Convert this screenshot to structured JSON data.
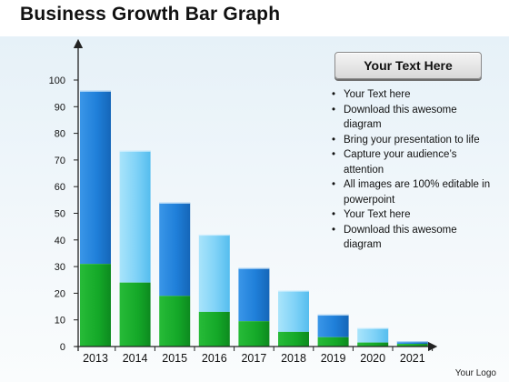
{
  "title": "Business Growth Bar Graph",
  "callout": {
    "label": "Your Text Here"
  },
  "bullets": [
    "Your Text here",
    "Download this awesome diagram",
    "Bring your presentation to life",
    "Capture your audience’s attention",
    "All images are 100% editable in powerpoint",
    "Your Text here",
    "Download this awesome diagram"
  ],
  "logo": "Your Logo",
  "colors": {
    "blue_dark": "#1c7bd6",
    "blue_light": "#7fd2f7",
    "green": "#14a828",
    "axis": "#222222"
  },
  "chart_data": {
    "type": "bar",
    "stacked": true,
    "categories": [
      "2013",
      "2014",
      "2015",
      "2016",
      "2017",
      "2018",
      "2019",
      "2020",
      "2021"
    ],
    "series": [
      {
        "values": [
          31,
          24,
          19,
          13,
          9.5,
          5.5,
          3.5,
          1.5,
          1
        ]
      },
      {
        "values": [
          65,
          49.5,
          35,
          29,
          20,
          15.5,
          8.5,
          5.5,
          1
        ]
      }
    ],
    "totals": [
      96,
      73.5,
      54,
      42,
      29.5,
      21,
      12,
      7,
      2
    ],
    "ylim": [
      0,
      100
    ],
    "yticks": [
      0,
      10,
      20,
      30,
      40,
      50,
      60,
      70,
      80,
      90,
      100
    ],
    "grid": false,
    "legend": "none"
  }
}
